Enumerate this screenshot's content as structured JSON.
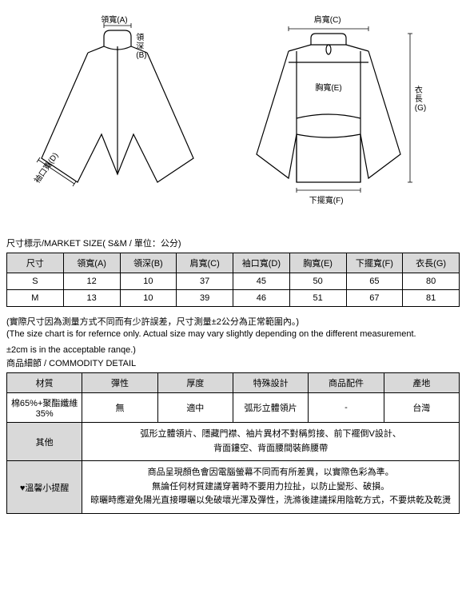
{
  "diagram_labels": {
    "collar_width": "領寬(A)",
    "collar_depth": "領深(B)",
    "shoulder": "肩寬(C)",
    "cuff": "袖口寬(D)",
    "chest": "胸寬(E)",
    "hem": "下擺寬(F)",
    "length": "衣長(G)"
  },
  "size_title": "尺寸標示/MARKET SIZE( S&M / 單位：公分)",
  "size_table": {
    "headers": [
      "尺寸",
      "領寬(A)",
      "領深(B)",
      "肩寬(C)",
      "袖口寬(D)",
      "胸寬(E)",
      "下擺寬(F)",
      "衣長(G)"
    ],
    "rows": [
      [
        "S",
        "12",
        "10",
        "37",
        "45",
        "50",
        "65",
        "80"
      ],
      [
        "M",
        "13",
        "10",
        "39",
        "46",
        "51",
        "67",
        "81"
      ]
    ]
  },
  "note_zh": "(實際尺寸因為測量方式不同而有少許誤差，尺寸測量±2公分為正常範圍內。)",
  "note_en": "(The size chart is for refernce only. Actual size may vary slightly depending on the different measurement.",
  "note_en2": "±2cm is in the acceptable ranqe.)",
  "detail_title": "商品細節 / COMMODITY DETAIL",
  "detail_headers": [
    "材質",
    "彈性",
    "厚度",
    "特殊設計",
    "商品配件",
    "產地"
  ],
  "detail_row1": [
    "棉65%+聚酯纖維35%",
    "無",
    "適中",
    "弧形立體領片",
    "-",
    "台灣"
  ],
  "other_label": "其他",
  "other_text": "弧形立體領片、隱藏門襟、袖片異材不對稱剪接、前下襬倒V設計、\n背面鏤空、背面腰間裝飾腰帶",
  "warn_label": "♥溫馨小提醒",
  "warn_text": "商品呈現顏色會因電腦螢幕不同而有所差異，以實際色彩為準。\n無論任何材質建議穿著時不要用力拉扯，以防止變形、破損。\n晾曬時應避免陽光直接曝曬以免破壞光澤及彈性，洗滌後建議採用陰乾方式，不要烘乾及乾燙"
}
